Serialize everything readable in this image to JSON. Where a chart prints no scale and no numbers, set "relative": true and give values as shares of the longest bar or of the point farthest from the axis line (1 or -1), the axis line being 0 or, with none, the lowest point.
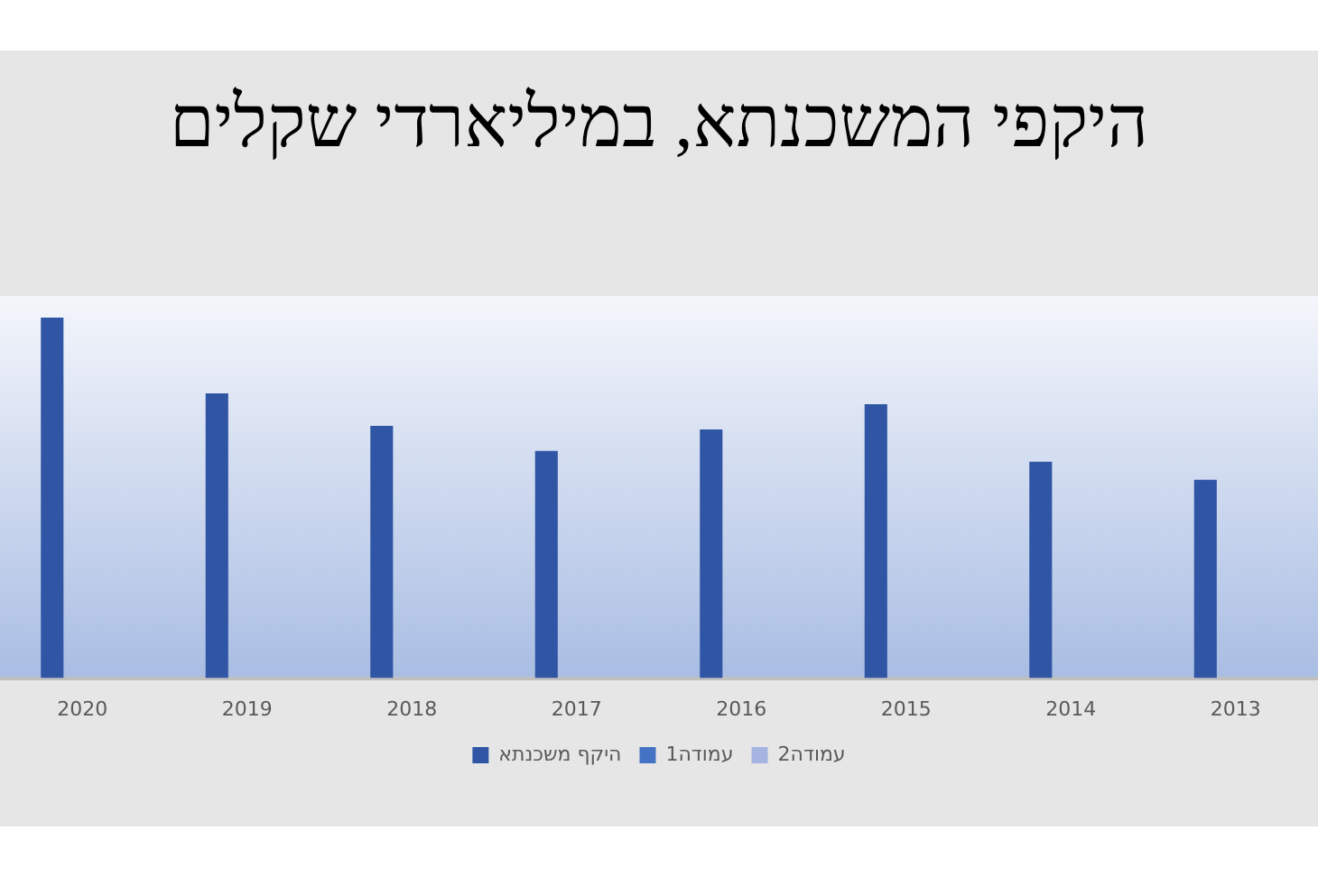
{
  "chart_data": {
    "type": "bar",
    "title": "היקפי המשכנתא, במיליארדי שקלים",
    "relative": true,
    "categories": [
      "2020",
      "2019",
      "2018",
      "2017",
      "2016",
      "2015",
      "2014",
      "2013"
    ],
    "series": [
      {
        "name": "היקף משכנתא",
        "color": "#2f55a4",
        "values": [
          1,
          0.79,
          0.7,
          0.63,
          0.69,
          0.76,
          0.6,
          0.55
        ]
      },
      {
        "name": "עמודה1",
        "color": "#4472c4",
        "values": [
          null,
          null,
          null,
          null,
          null,
          null,
          null,
          null
        ]
      },
      {
        "name": "עמודה2",
        "color": "#a5b4e0",
        "values": [
          null,
          null,
          null,
          null,
          null,
          null,
          null,
          null
        ]
      }
    ],
    "legend": "bottom"
  }
}
